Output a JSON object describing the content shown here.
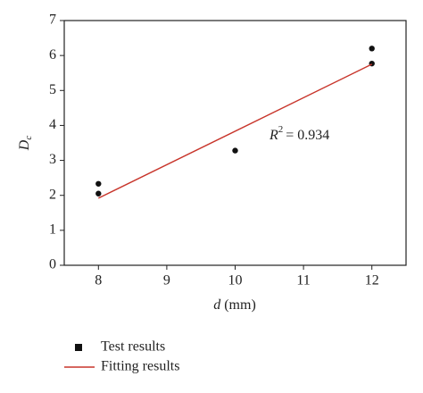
{
  "chart_data": {
    "type": "scatter",
    "xlabel": {
      "italic": "d",
      "rest": "(mm)"
    },
    "ylabel": {
      "italic": "D",
      "sub": "c"
    },
    "annotation": {
      "italic": "R",
      "sup": "2",
      "rest": "= 0.934"
    },
    "xlim": [
      7.5,
      12.5
    ],
    "xticks": [
      8,
      9,
      10,
      11,
      12
    ],
    "ylim": [
      0,
      7
    ],
    "yticks": [
      0,
      1,
      2,
      3,
      4,
      5,
      6,
      7
    ],
    "grid": false,
    "legend": "bottom",
    "series": [
      {
        "name": "Test results",
        "type": "scatter",
        "color": "#111111",
        "x": [
          8,
          8,
          10,
          12,
          12
        ],
        "values": [
          2.33,
          2.05,
          3.28,
          6.2,
          5.77
        ]
      },
      {
        "name": "Fitting results",
        "type": "line",
        "color": "#c8352b",
        "x": [
          8,
          12
        ],
        "values": [
          1.92,
          5.75
        ]
      }
    ]
  }
}
